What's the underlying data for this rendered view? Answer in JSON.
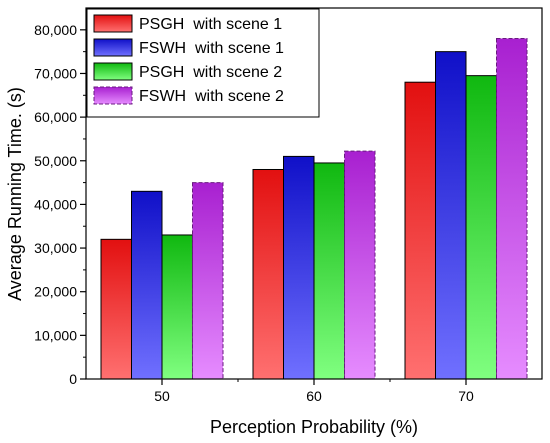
{
  "chart_data": {
    "type": "bar",
    "categories": [
      "50",
      "60",
      "70"
    ],
    "xlabel": "Perception Probability (%)",
    "ylabel": "Average Running Time. (s)",
    "ylim": [
      0,
      85000
    ],
    "yticks": [
      0,
      10000,
      20000,
      30000,
      40000,
      50000,
      60000,
      70000,
      80000
    ],
    "ytick_labels": [
      "0",
      "10,000",
      "20,000",
      "30,000",
      "40,000",
      "50,000",
      "60,000",
      "70,000",
      "80,000"
    ],
    "grid": false,
    "legend_position": "top-left",
    "series": [
      {
        "name": "PSGH  with scene 1",
        "values": [
          32000,
          48000,
          68000
        ],
        "color": "#ff2a2a",
        "pattern": "solid"
      },
      {
        "name": "FSWH  with scene 1",
        "values": [
          43000,
          51000,
          75000
        ],
        "color": "#2a2aff",
        "pattern": "solid"
      },
      {
        "name": "PSGH  with scene 2",
        "values": [
          33000,
          49500,
          69500
        ],
        "color": "#2ae02a",
        "pattern": "solid"
      },
      {
        "name": "FSWH  with scene 2",
        "values": [
          45000,
          52200,
          78000
        ],
        "color": "#cc44ee",
        "pattern": "dashed"
      }
    ]
  }
}
